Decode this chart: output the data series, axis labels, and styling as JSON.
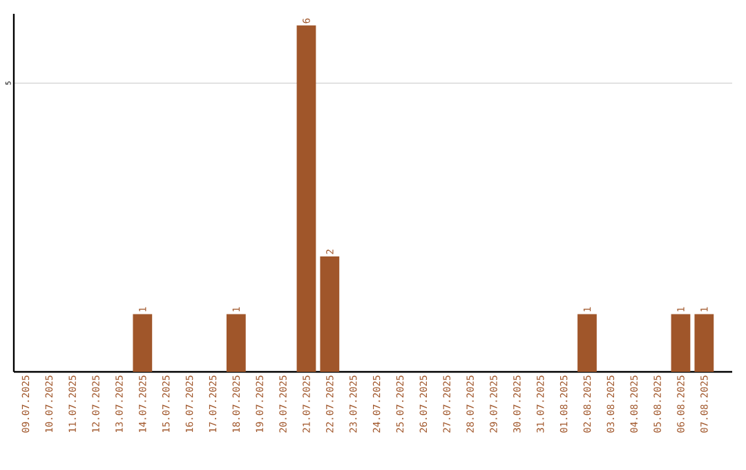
{
  "chart_data": {
    "type": "bar",
    "categories": [
      "09.07.2025",
      "10.07.2025",
      "11.07.2025",
      "12.07.2025",
      "13.07.2025",
      "14.07.2025",
      "15.07.2025",
      "16.07.2025",
      "17.07.2025",
      "18.07.2025",
      "19.07.2025",
      "20.07.2025",
      "21.07.2025",
      "22.07.2025",
      "23.07.2025",
      "24.07.2025",
      "25.07.2025",
      "26.07.2025",
      "27.07.2025",
      "28.07.2025",
      "29.07.2025",
      "30.07.2025",
      "31.07.2025",
      "01.08.2025",
      "02.08.2025",
      "03.08.2025",
      "04.08.2025",
      "05.08.2025",
      "06.08.2025",
      "07.08.2025"
    ],
    "values": [
      0,
      0,
      0,
      0,
      0,
      1,
      0,
      0,
      0,
      1,
      0,
      0,
      6,
      2,
      0,
      0,
      0,
      0,
      0,
      0,
      0,
      0,
      0,
      0,
      1,
      0,
      0,
      0,
      1,
      1
    ],
    "value_labels": [
      null,
      null,
      null,
      null,
      null,
      "1",
      null,
      null,
      null,
      "1",
      null,
      null,
      "6",
      "2",
      null,
      null,
      null,
      null,
      null,
      null,
      null,
      null,
      null,
      null,
      "1",
      null,
      null,
      null,
      "1",
      "1"
    ],
    "color": "#a0562a",
    "ylim": [
      0,
      6.2
    ],
    "yticks": [
      5
    ],
    "grid": "y"
  }
}
